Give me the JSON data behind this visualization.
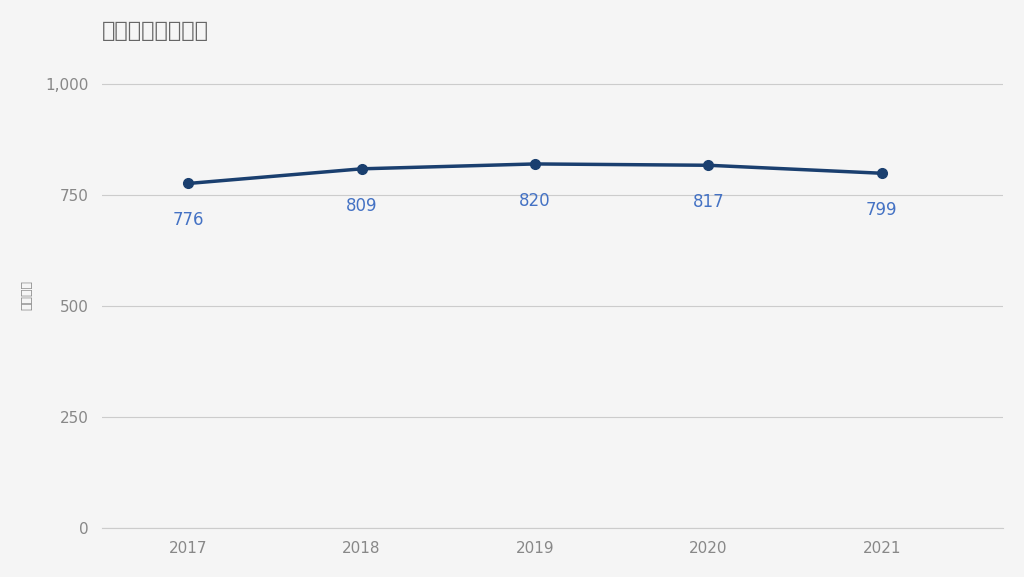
{
  "title": "ホンダの平均年収",
  "years": [
    2017,
    2018,
    2019,
    2020,
    2021
  ],
  "values": [
    776,
    809,
    820,
    817,
    799
  ],
  "line_color": "#1a3f6f",
  "annotation_color": "#4472c4",
  "ylabel": "平均年収",
  "ylim": [
    0,
    1050
  ],
  "yticks": [
    0,
    250,
    500,
    750,
    1000
  ],
  "ytick_labels": [
    "0",
    "250",
    "500",
    "750",
    "1,000"
  ],
  "background_color": "#f5f5f5",
  "grid_color": "#cccccc",
  "title_color": "#666666",
  "axis_label_color": "#888888",
  "tick_label_color": "#888888",
  "title_fontsize": 16,
  "annotation_fontsize": 12,
  "ylabel_fontsize": 9,
  "tick_fontsize": 11,
  "marker_size": 7,
  "line_width": 2.5
}
